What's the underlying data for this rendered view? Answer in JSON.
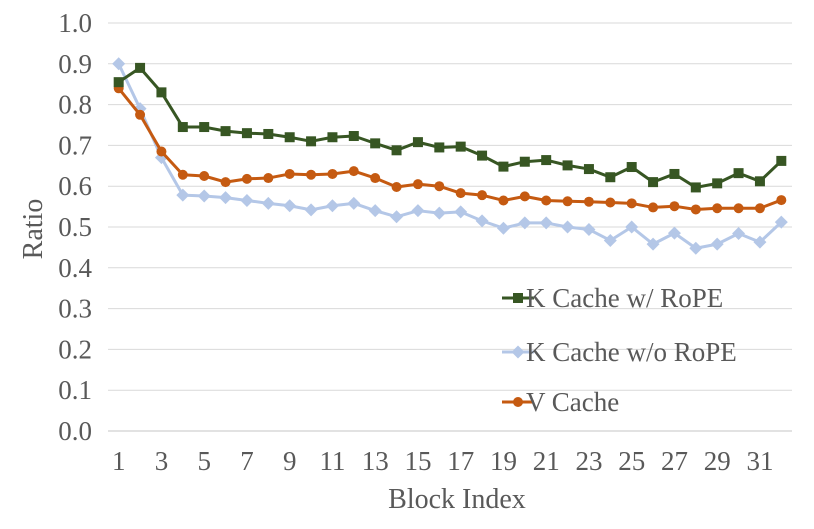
{
  "chart_data": {
    "type": "line",
    "title": "",
    "xlabel": "Block Index",
    "ylabel": "Ratio",
    "ylim": [
      0.0,
      1.0
    ],
    "yticks": [
      "0.0",
      "0.1",
      "0.2",
      "0.3",
      "0.4",
      "0.5",
      "0.6",
      "0.7",
      "0.8",
      "0.9",
      "1.0"
    ],
    "xticks": [
      "1",
      "3",
      "5",
      "7",
      "9",
      "11",
      "13",
      "15",
      "17",
      "19",
      "21",
      "23",
      "25",
      "27",
      "29",
      "31"
    ],
    "x": [
      1,
      2,
      3,
      4,
      5,
      6,
      7,
      8,
      9,
      10,
      11,
      12,
      13,
      14,
      15,
      16,
      17,
      18,
      19,
      20,
      21,
      22,
      23,
      24,
      25,
      26,
      27,
      28,
      29,
      30,
      31,
      32
    ],
    "grid": "horizontal",
    "legend_position": "bottom-right",
    "series": [
      {
        "name": "K Cache w/ RoPE",
        "color": "#375623",
        "marker": "square",
        "values": [
          0.855,
          0.89,
          0.83,
          0.745,
          0.745,
          0.735,
          0.73,
          0.728,
          0.72,
          0.71,
          0.72,
          0.723,
          0.705,
          0.688,
          0.708,
          0.695,
          0.697,
          0.675,
          0.648,
          0.66,
          0.664,
          0.651,
          0.642,
          0.622,
          0.647,
          0.61,
          0.63,
          0.597,
          0.607,
          0.632,
          0.612,
          0.662
        ]
      },
      {
        "name": "K Cache w/o RoPE",
        "color": "#B4C7E7",
        "marker": "diamond",
        "values": [
          0.9,
          0.79,
          0.67,
          0.578,
          0.576,
          0.572,
          0.565,
          0.558,
          0.552,
          0.542,
          0.552,
          0.558,
          0.54,
          0.525,
          0.54,
          0.534,
          0.537,
          0.515,
          0.497,
          0.51,
          0.51,
          0.5,
          0.494,
          0.467,
          0.5,
          0.458,
          0.485,
          0.448,
          0.458,
          0.484,
          0.463,
          0.512
        ]
      },
      {
        "name": "V Cache",
        "color": "#C55A11",
        "marker": "circle",
        "values": [
          0.84,
          0.775,
          0.685,
          0.628,
          0.625,
          0.61,
          0.618,
          0.62,
          0.63,
          0.628,
          0.63,
          0.637,
          0.62,
          0.598,
          0.605,
          0.6,
          0.583,
          0.578,
          0.565,
          0.575,
          0.565,
          0.563,
          0.562,
          0.56,
          0.558,
          0.548,
          0.551,
          0.543,
          0.546,
          0.546,
          0.546,
          0.566
        ]
      }
    ]
  }
}
